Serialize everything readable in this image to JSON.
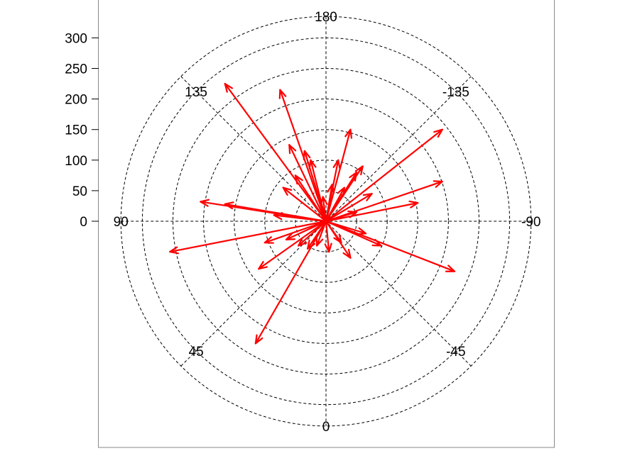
{
  "chart_data": {
    "type": "polar-vector",
    "title": "",
    "arrow_color": "#ff0000",
    "grid_color": "#000000",
    "rlim": [
      0,
      330
    ],
    "r_ticks": [
      0,
      50,
      100,
      150,
      200,
      250,
      300
    ],
    "r_tick_labels": [
      "0",
      "50",
      "100",
      "150",
      "200",
      "250",
      "300"
    ],
    "ring_radii": [
      50,
      100,
      150,
      200,
      250,
      300,
      335
    ],
    "angle_labels": [
      {
        "angle": 0,
        "label": "0"
      },
      {
        "angle": 45,
        "label": "45"
      },
      {
        "angle": 90,
        "label": "90"
      },
      {
        "angle": 135,
        "label": "135"
      },
      {
        "angle": 180,
        "label": "180"
      },
      {
        "angle": -135,
        "label": "-135"
      },
      {
        "angle": -90,
        "label": "-90"
      },
      {
        "angle": -45,
        "label": "-45"
      }
    ],
    "vectors": [
      {
        "dx": -165,
        "dy": 225
      },
      {
        "dx": -75,
        "dy": 215
      },
      {
        "dx": 190,
        "dy": 150
      },
      {
        "dx": 190,
        "dy": 65
      },
      {
        "dx": 150,
        "dy": 30
      },
      {
        "dx": -205,
        "dy": 32
      },
      {
        "dx": -165,
        "dy": 28
      },
      {
        "dx": -255,
        "dy": -50
      },
      {
        "dx": 210,
        "dy": -82
      },
      {
        "dx": -115,
        "dy": -200
      },
      {
        "dx": -110,
        "dy": -78
      },
      {
        "dx": -45,
        "dy": -40
      },
      {
        "dx": -60,
        "dy": 125
      },
      {
        "dx": -35,
        "dy": 115
      },
      {
        "dx": -25,
        "dy": 100
      },
      {
        "dx": 40,
        "dy": 150
      },
      {
        "dx": 20,
        "dy": 100
      },
      {
        "dx": 60,
        "dy": 90
      },
      {
        "dx": 50,
        "dy": 80
      },
      {
        "dx": 10,
        "dy": 60
      },
      {
        "dx": -70,
        "dy": 55
      },
      {
        "dx": -50,
        "dy": 75
      },
      {
        "dx": -85,
        "dy": 10
      },
      {
        "dx": -100,
        "dy": -35
      },
      {
        "dx": -65,
        "dy": -30
      },
      {
        "dx": -30,
        "dy": -45
      },
      {
        "dx": 40,
        "dy": -60
      },
      {
        "dx": 90,
        "dy": -40
      },
      {
        "dx": 65,
        "dy": -20
      },
      {
        "dx": 50,
        "dy": 15
      },
      {
        "dx": 75,
        "dy": 45
      },
      {
        "dx": 5,
        "dy": -50
      },
      {
        "dx": -15,
        "dy": -40
      },
      {
        "dx": 25,
        "dy": -35
      },
      {
        "dx": -5,
        "dy": 40
      },
      {
        "dx": 30,
        "dy": 55
      }
    ]
  }
}
